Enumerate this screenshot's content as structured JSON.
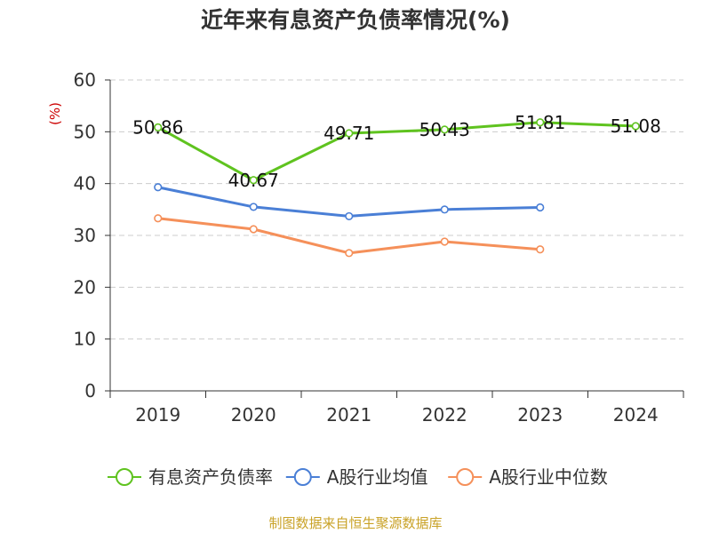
{
  "source_note": "制图数据来自恒生聚源数据库",
  "colors": {
    "series_1": "#5fc31f",
    "series_2": "#4a7fd6",
    "series_3": "#f5905a",
    "title": "#333333",
    "axis_text": "#333333",
    "unit_label": "#cc0000",
    "source_note": "#c9a227",
    "grid": "#cccccc",
    "axis_line": "#333333"
  },
  "chart_data": {
    "type": "line",
    "title": "近年来有息资产负债率情况(%)",
    "ylabel": "(%)",
    "categories": [
      "2019",
      "2020",
      "2021",
      "2022",
      "2023",
      "2024"
    ],
    "ylim": [
      0,
      60
    ],
    "yticks": [
      0,
      10,
      20,
      30,
      40,
      50,
      60
    ],
    "grid": true,
    "legend_position": "bottom",
    "series": [
      {
        "name": "有息资产负债率",
        "values": [
          50.86,
          40.67,
          49.71,
          50.43,
          51.81,
          51.08
        ],
        "labels": [
          "50.86",
          "40.67",
          "49.71",
          "50.43",
          "51.81",
          "51.08"
        ]
      },
      {
        "name": "A股行业均值",
        "values": [
          39.3,
          35.5,
          33.7,
          35.0,
          35.4,
          null
        ]
      },
      {
        "name": "A股行业中位数",
        "values": [
          33.3,
          31.2,
          26.6,
          28.8,
          27.3,
          null
        ]
      }
    ]
  }
}
